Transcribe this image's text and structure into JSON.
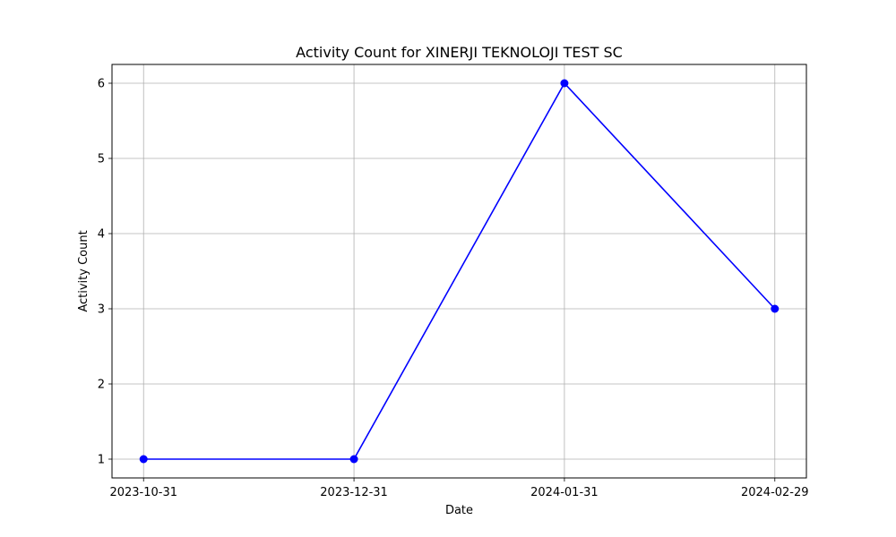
{
  "chart_data": {
    "type": "line",
    "title": "Activity Count for XINERJI TEKNOLOJI TEST SC",
    "xlabel": "Date",
    "ylabel": "Activity Count",
    "categories": [
      "2023-10-31",
      "2023-12-31",
      "2024-01-31",
      "2024-02-29"
    ],
    "series": [
      {
        "values": [
          1,
          1,
          6,
          3
        ],
        "color": "#0000ff",
        "marker": "circle"
      }
    ],
    "yticks": [
      "1",
      "2",
      "3",
      "4",
      "5",
      "6"
    ],
    "ylim": [
      0.75,
      6.25
    ],
    "grid": true,
    "legend": "none"
  }
}
